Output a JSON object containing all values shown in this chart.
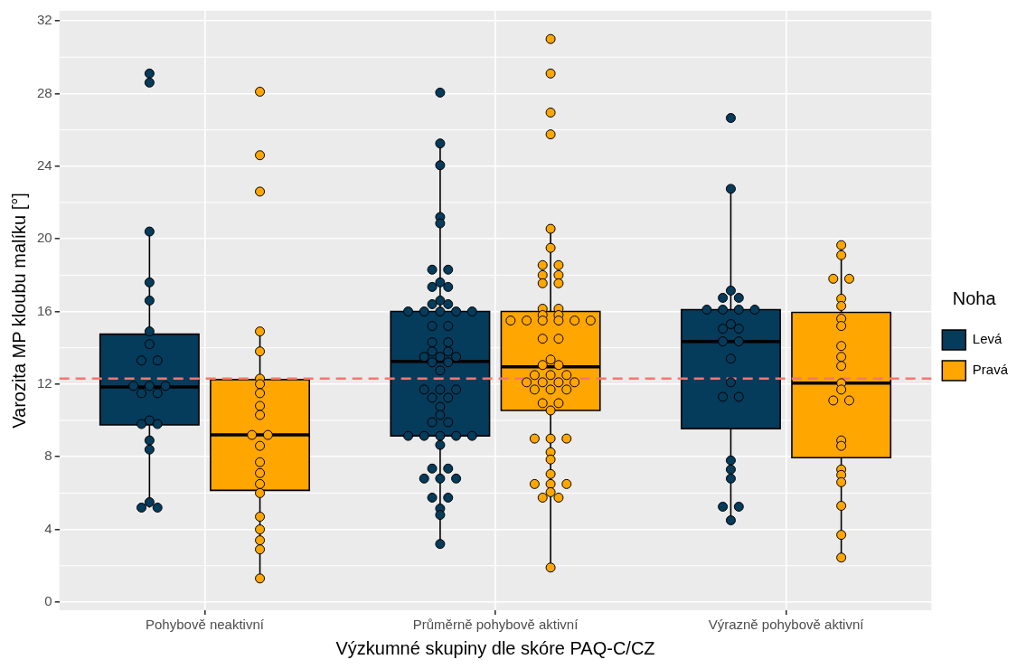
{
  "chart_data": {
    "type": "box",
    "xlabel": "Výzkumné skupiny dle skóre PAQ-C/CZ",
    "ylabel": "Varozita MP kloubu malíku [°]",
    "legend_title": "Noha",
    "legend": "right",
    "grid": true,
    "marker": "circle",
    "categories": [
      "Pohybově neaktivní",
      "Průměrně pohybově aktivní",
      "Výrazně pohybově aktivní"
    ],
    "ylim": [
      -0.45,
      32.55
    ],
    "yticks": [
      0,
      4,
      8,
      12,
      16,
      20,
      24,
      28,
      32
    ],
    "ref_lines": [
      {
        "axis": "y",
        "value": 12.3,
        "color": "#f8766d",
        "line_style": "dashed"
      }
    ],
    "series": [
      {
        "name": "Levá",
        "color": "#053b5b",
        "boxes": [
          {
            "low": 5.2,
            "q1": 9.75,
            "median": 11.85,
            "q3": 14.75,
            "high": 20.4
          },
          {
            "low": 3.2,
            "q1": 9.15,
            "median": 13.25,
            "q3": 16.0,
            "high": 25.25
          },
          {
            "low": 4.5,
            "q1": 9.55,
            "median": 14.35,
            "q3": 16.1,
            "high": 22.75
          }
        ]
      },
      {
        "name": "Pravá",
        "color": "#ffa600",
        "boxes": [
          {
            "low": 1.3,
            "q1": 6.15,
            "median": 9.2,
            "q3": 12.25,
            "high": 14.9
          },
          {
            "low": 1.9,
            "q1": 10.55,
            "median": 12.95,
            "q3": 16.0,
            "high": 20.55
          },
          {
            "low": 2.45,
            "q1": 7.95,
            "median": 12.05,
            "q3": 15.95,
            "high": 19.65
          }
        ]
      },
      {
        "type": "scatter",
        "color": "#053b5b",
        "x": [
          "Pohybově neaktivní",
          "Pohybově neaktivní",
          "Pohybově neaktivní",
          "Pohybově neaktivní",
          "Pohybově neaktivní",
          "Pohybově neaktivní",
          "Pohybově neaktivní",
          "Pohybově neaktivní",
          "Pohybově neaktivní",
          "Pohybově neaktivní",
          "Pohybově neaktivní",
          "Pohybově neaktivní",
          "Pohybově neaktivní",
          "Pohybově neaktivní",
          "Pohybově neaktivní",
          "Pohybově neaktivní",
          "Pohybově neaktivní",
          "Pohybově neaktivní",
          "Pohybově neaktivní",
          "Pohybově neaktivní",
          "Pohybově neaktivní",
          "Pohybově neaktivní",
          "Průměrně pohybově aktivní",
          "Průměrně pohybově aktivní",
          "Průměrně pohybově aktivní",
          "Průměrně pohybově aktivní",
          "Průměrně pohybově aktivní",
          "Průměrně pohybově aktivní",
          "Průměrně pohybově aktivní",
          "Průměrně pohybově aktivní",
          "Průměrně pohybově aktivní",
          "Průměrně pohybově aktivní",
          "Průměrně pohybově aktivní",
          "Průměrně pohybově aktivní",
          "Průměrně pohybově aktivní",
          "Průměrně pohybově aktivní",
          "Průměrně pohybově aktivní",
          "Průměrně pohybově aktivní",
          "Průměrně pohybově aktivní",
          "Průměrně pohybově aktivní",
          "Průměrně pohybově aktivní",
          "Průměrně pohybově aktivní",
          "Průměrně pohybově aktivní",
          "Průměrně pohybově aktivní",
          "Průměrně pohybově aktivní",
          "Průměrně pohybově aktivní",
          "Průměrně pohybově aktivní",
          "Průměrně pohybově aktivní",
          "Průměrně pohybově aktivní",
          "Průměrně pohybově aktivní",
          "Průměrně pohybově aktivní",
          "Průměrně pohybově aktivní",
          "Průměrně pohybově aktivní",
          "Průměrně pohybově aktivní",
          "Průměrně pohybově aktivní",
          "Průměrně pohybově aktivní",
          "Průměrně pohybově aktivní",
          "Průměrně pohybově aktivní",
          "Průměrně pohybově aktivní",
          "Průměrně pohybově aktivní",
          "Průměrně pohybově aktivní",
          "Průměrně pohybově aktivní",
          "Průměrně pohybově aktivní",
          "Průměrně pohybově aktivní",
          "Průměrně pohybově aktivní",
          "Průměrně pohybově aktivní",
          "Průměrně pohybově aktivní",
          "Průměrně pohybově aktivní",
          "Průměrně pohybově aktivní",
          "Průměrně pohybově aktivní",
          "Průměrně pohybově aktivní",
          "Průměrně pohybově aktivní",
          "Průměrně pohybově aktivní",
          "Průměrně pohybově aktivní",
          "Průměrně pohybově aktivní",
          "Průměrně pohybově aktivní",
          "Průměrně pohybově aktivní",
          "Výrazně pohybově aktivní",
          "Výrazně pohybově aktivní",
          "Výrazně pohybově aktivní",
          "Výrazně pohybově aktivní",
          "Výrazně pohybově aktivní",
          "Výrazně pohybově aktivní",
          "Výrazně pohybově aktivní",
          "Výrazně pohybově aktivní",
          "Výrazně pohybově aktivní",
          "Výrazně pohybově aktivní",
          "Výrazně pohybově aktivní",
          "Výrazně pohybově aktivní",
          "Výrazně pohybově aktivní",
          "Výrazně pohybově aktivní",
          "Výrazně pohybově aktivní",
          "Výrazně pohybově aktivní",
          "Výrazně pohybově aktivní",
          "Výrazně pohybově aktivní",
          "Výrazně pohybově aktivní",
          "Výrazně pohybově aktivní",
          "Výrazně pohybově aktivní",
          "Výrazně pohybově aktivní",
          "Výrazně pohybově aktivní",
          "Výrazně pohybově aktivní"
        ],
        "values": [
          29.1,
          28.6,
          20.4,
          17.6,
          16.6,
          14.9,
          14.2,
          13.3,
          13.3,
          11.9,
          11.9,
          11.9,
          11.5,
          11.5,
          10.0,
          9.8,
          9.8,
          8.9,
          8.4,
          5.5,
          5.2,
          5.2,
          28.05,
          25.25,
          24.05,
          21.2,
          20.85,
          18.3,
          18.3,
          17.6,
          17.35,
          17.35,
          16.6,
          16.4,
          16.4,
          16.0,
          16.0,
          16.0,
          16.0,
          16.0,
          15.2,
          15.2,
          14.3,
          14.3,
          13.8,
          13.8,
          13.5,
          13.5,
          13.5,
          13.2,
          13.2,
          12.75,
          11.7,
          11.7,
          11.7,
          11.25,
          11.25,
          10.75,
          10.3,
          9.9,
          9.9,
          9.15,
          9.15,
          9.15,
          9.15,
          9.15,
          8.65,
          7.35,
          7.35,
          6.8,
          6.8,
          6.8,
          5.75,
          5.75,
          5.15,
          4.8,
          3.2,
          26.65,
          22.75,
          17.15,
          16.75,
          16.75,
          16.1,
          16.1,
          16.1,
          16.1,
          15.3,
          15.05,
          15.05,
          14.35,
          14.35,
          13.4,
          12.1,
          11.3,
          11.3,
          7.8,
          7.3,
          6.8,
          5.25,
          5.25,
          4.5
        ]
      },
      {
        "type": "scatter",
        "color": "#ffa600",
        "x": [
          "Pohybově neaktivní",
          "Pohybově neaktivní",
          "Pohybově neaktivní",
          "Pohybově neaktivní",
          "Pohybově neaktivní",
          "Pohybově neaktivní",
          "Pohybově neaktivní",
          "Pohybově neaktivní",
          "Pohybově neaktivní",
          "Pohybově neaktivní",
          "Pohybově neaktivní",
          "Pohybově neaktivní",
          "Pohybově neaktivní",
          "Pohybově neaktivní",
          "Pohybově neaktivní",
          "Pohybově neaktivní",
          "Pohybově neaktivní",
          "Pohybově neaktivní",
          "Pohybově neaktivní",
          "Pohybově neaktivní",
          "Pohybově neaktivní",
          "Pohybově neaktivní",
          "Průměrně pohybově aktivní",
          "Průměrně pohybově aktivní",
          "Průměrně pohybově aktivní",
          "Průměrně pohybově aktivní",
          "Průměrně pohybově aktivní",
          "Průměrně pohybově aktivní",
          "Průměrně pohybově aktivní",
          "Průměrně pohybově aktivní",
          "Průměrně pohybově aktivní",
          "Průměrně pohybově aktivní",
          "Průměrně pohybově aktivní",
          "Průměrně pohybově aktivní",
          "Průměrně pohybově aktivní",
          "Průměrně pohybově aktivní",
          "Průměrně pohybově aktivní",
          "Průměrně pohybově aktivní",
          "Průměrně pohybově aktivní",
          "Průměrně pohybově aktivní",
          "Průměrně pohybově aktivní",
          "Průměrně pohybově aktivní",
          "Průměrně pohybově aktivní",
          "Průměrně pohybově aktivní",
          "Průměrně pohybově aktivní",
          "Průměrně pohybově aktivní",
          "Průměrně pohybově aktivní",
          "Průměrně pohybově aktivní",
          "Průměrně pohybově aktivní",
          "Průměrně pohybově aktivní",
          "Průměrně pohybově aktivní",
          "Průměrně pohybově aktivní",
          "Průměrně pohybově aktivní",
          "Průměrně pohybově aktivní",
          "Průměrně pohybově aktivní",
          "Průměrně pohybově aktivní",
          "Průměrně pohybově aktivní",
          "Průměrně pohybově aktivní",
          "Průměrně pohybově aktivní",
          "Průměrně pohybově aktivní",
          "Průměrně pohybově aktivní",
          "Průměrně pohybově aktivní",
          "Průměrně pohybově aktivní",
          "Průměrně pohybově aktivní",
          "Průměrně pohybově aktivní",
          "Průměrně pohybově aktivní",
          "Průměrně pohybově aktivní",
          "Průměrně pohybově aktivní",
          "Průměrně pohybově aktivní",
          "Průměrně pohybově aktivní",
          "Průměrně pohybově aktivní",
          "Průměrně pohybově aktivní",
          "Průměrně pohybově aktivní",
          "Průměrně pohybově aktivní",
          "Průměrně pohybově aktivní",
          "Výrazně pohybově aktivní",
          "Výrazně pohybově aktivní",
          "Výrazně pohybově aktivní",
          "Výrazně pohybově aktivní",
          "Výrazně pohybově aktivní",
          "Výrazně pohybově aktivní",
          "Výrazně pohybově aktivní",
          "Výrazně pohybově aktivní",
          "Výrazně pohybově aktivní",
          "Výrazně pohybově aktivní",
          "Výrazně pohybově aktivní",
          "Výrazně pohybově aktivní",
          "Výrazně pohybově aktivní",
          "Výrazně pohybově aktivní",
          "Výrazně pohybově aktivní",
          "Výrazně pohybově aktivní",
          "Výrazně pohybově aktivní",
          "Výrazně pohybově aktivní",
          "Výrazně pohybově aktivní",
          "Výrazně pohybově aktivní",
          "Výrazně pohybově aktivní",
          "Výrazně pohybově aktivní",
          "Výrazně pohybově aktivní"
        ],
        "values": [
          28.1,
          24.6,
          22.6,
          14.9,
          13.8,
          12.3,
          12.0,
          11.5,
          10.8,
          10.3,
          9.2,
          9.2,
          8.6,
          7.7,
          7.1,
          6.5,
          6.0,
          4.7,
          4.0,
          3.4,
          2.9,
          1.3,
          31.0,
          29.1,
          26.95,
          25.75,
          20.55,
          19.5,
          18.55,
          18.55,
          18.0,
          18.0,
          17.55,
          17.55,
          16.15,
          16.15,
          15.8,
          15.8,
          15.5,
          15.5,
          15.5,
          15.5,
          15.5,
          15.5,
          14.5,
          14.5,
          13.35,
          13.05,
          13.05,
          12.5,
          12.5,
          12.5,
          12.1,
          12.1,
          12.1,
          12.1,
          11.7,
          11.7,
          11.7,
          10.95,
          10.95,
          10.55,
          9.0,
          9.0,
          9.0,
          8.25,
          7.85,
          7.05,
          6.5,
          6.5,
          6.5,
          6.05,
          5.75,
          5.75,
          1.9,
          19.65,
          19.1,
          17.8,
          17.8,
          16.7,
          16.3,
          15.6,
          15.2,
          14.1,
          13.5,
          13.0,
          12.05,
          11.7,
          11.1,
          11.1,
          8.9,
          8.6,
          7.3,
          7.0,
          6.6,
          5.3,
          3.7,
          2.45
        ]
      }
    ]
  }
}
